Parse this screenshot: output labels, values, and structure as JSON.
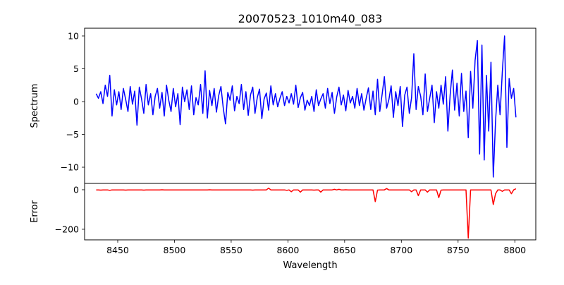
{
  "chart_data": {
    "type": "line",
    "title": "20070523_1010m40_083",
    "xlabel": "Wavelength",
    "xlim": [
      8420.8,
      8818.5
    ],
    "x_start": 8431,
    "x_step": 2,
    "x_ticks": [
      8450,
      8500,
      8550,
      8600,
      8650,
      8700,
      8750,
      8800
    ],
    "panels": [
      {
        "name": "spectrum",
        "ylabel": "Spectrum",
        "ylim": [
          -12.47,
          11.18
        ],
        "y_ticks": [
          10,
          5,
          0,
          -5,
          -10
        ],
        "color": "#0000ff",
        "values": [
          1.2,
          0.5,
          1.5,
          -0.3,
          2.5,
          0.8,
          4.0,
          -2.2,
          1.8,
          -0.5,
          1.5,
          -1.2,
          2.0,
          0.3,
          -1.5,
          2.3,
          -0.4,
          1.6,
          -3.6,
          2.2,
          0.4,
          -1.8,
          2.6,
          -0.5,
          1.2,
          -2.0,
          0.8,
          2.0,
          -1.0,
          1.4,
          -2.2,
          2.5,
          0.2,
          -1.5,
          2.0,
          -0.8,
          1.2,
          -3.5,
          2.2,
          0.0,
          1.8,
          -1.2,
          2.4,
          -2.0,
          0.6,
          -0.5,
          2.6,
          -1.8,
          4.7,
          -2.5,
          1.7,
          -0.6,
          2.0,
          -1.6,
          0.9,
          2.3,
          -1.0,
          -3.4,
          1.4,
          0.2,
          2.4,
          -1.4,
          0.8,
          -0.3,
          2.6,
          -1.2,
          1.5,
          -2.1,
          1.0,
          2.2,
          -1.8,
          0.6,
          1.9,
          -2.6,
          0.4,
          1.3,
          -1.3,
          2.4,
          -0.5,
          1.2,
          -0.8,
          0.5,
          1.5,
          -0.6,
          0.8,
          -0.2,
          1.2,
          -0.4,
          2.5,
          -0.9,
          0.6,
          1.4,
          -1.3,
          0.2,
          -0.6,
          0.8,
          -1.5,
          1.8,
          -0.6,
          0.4,
          1.2,
          -1.0,
          2.0,
          -0.3,
          1.4,
          -1.8,
          0.7,
          2.2,
          -0.5,
          1.0,
          -1.4,
          1.7,
          -0.2,
          0.8,
          -1.0,
          2.0,
          -0.6,
          1.2,
          -1.3,
          0.5,
          2.1,
          -1.2,
          1.6,
          -2.0,
          3.4,
          -1.5,
          1.0,
          3.8,
          -1.0,
          0.3,
          2.4,
          -2.4,
          1.5,
          -0.6,
          2.3,
          -3.8,
          1.0,
          2.2,
          -1.8,
          0.6,
          7.3,
          -1.2,
          2.3,
          0.8,
          -2.0,
          4.2,
          -1.5,
          0.5,
          2.5,
          -3.2,
          1.5,
          -1.0,
          2.5,
          -0.4,
          3.8,
          -4.5,
          1.0,
          4.8,
          -1.3,
          2.8,
          -2.2,
          4.3,
          -1.5,
          1.6,
          -5.5,
          4.6,
          -1.0,
          6.3,
          9.3,
          -8.0,
          8.6,
          -8.9,
          4.0,
          -4.5,
          6.0,
          -11.5,
          -3.0,
          2.5,
          -2.0,
          4.5,
          10.0,
          -7.0,
          3.5,
          0.5,
          2.0,
          -2.4
        ]
      },
      {
        "name": "error",
        "ylabel": "Error",
        "ylim": [
          -253.6,
          32
        ],
        "y_ticks": [
          0,
          -200
        ],
        "color": "#ff0000",
        "values": [
          -1,
          -1,
          -2,
          -1,
          -1,
          -1,
          -3,
          -1,
          -1,
          -1,
          -1,
          -1,
          -1,
          -2,
          -1,
          -1,
          -1,
          -1,
          -1,
          -1,
          -1,
          -2,
          -1,
          -1,
          -1,
          -1,
          -1,
          -1,
          -1,
          0,
          -1,
          -1,
          -1,
          -1,
          -1,
          -1,
          -1,
          -1,
          -1,
          -1,
          -1,
          -1,
          -1,
          -1,
          -1,
          -1,
          -1,
          -1,
          -1,
          -1,
          0,
          -1,
          -1,
          -1,
          -1,
          -1,
          -1,
          -1,
          -1,
          -1,
          -1,
          -1,
          -1,
          -1,
          -1,
          -1,
          -1,
          -1,
          -1,
          -2,
          -1,
          -1,
          -1,
          -1,
          -1,
          -1,
          8,
          -1,
          -1,
          -1,
          -1,
          -1,
          -1,
          -1,
          -3,
          -1,
          -10,
          -1,
          -1,
          -1,
          -12,
          -1,
          -1,
          -1,
          -1,
          -1,
          -2,
          -1,
          -1,
          -12,
          -1,
          -1,
          -1,
          -1,
          -1,
          2,
          -1,
          2,
          -1,
          -1,
          0,
          -1,
          -1,
          -1,
          -1,
          -1,
          -1,
          -1,
          -1,
          -1,
          -1,
          -1,
          -1,
          -60,
          -2,
          -1,
          -1,
          -1,
          6,
          -1,
          -1,
          -1,
          -1,
          -1,
          -1,
          -1,
          -1,
          -1,
          -1,
          -10,
          -1,
          -1,
          -30,
          -1,
          -1,
          -1,
          -12,
          -1,
          -1,
          -1,
          -1,
          -40,
          -2,
          -1,
          -1,
          -1,
          -1,
          -1,
          -1,
          -1,
          -1,
          -1,
          -1,
          -1,
          -245,
          -1,
          -1,
          -1,
          -1,
          -1,
          -1,
          -1,
          -1,
          -1,
          -1,
          -75,
          -20,
          -1,
          -1,
          -8,
          -1,
          -1,
          -1,
          -20,
          -1,
          5
        ]
      }
    ]
  }
}
